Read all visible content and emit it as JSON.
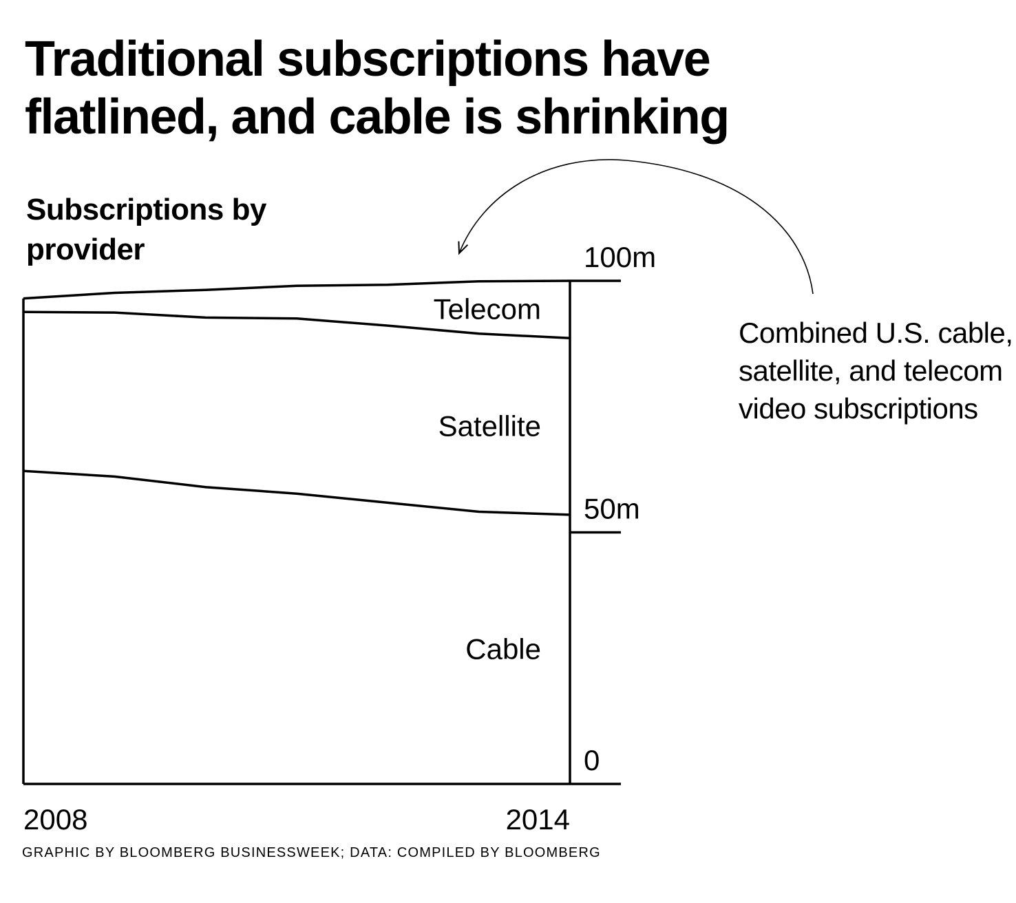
{
  "title": "Traditional subscriptions have flatlined, and cable is shrinking",
  "subtitle": "Subscriptions by provider",
  "annotation": "Combined U.S. cable, satellite, and telecom video subscriptions",
  "source": "GRAPHIC BY BLOOMBERG BUSINESSWEEK; DATA: COMPILED BY BLOOMBERG",
  "chart_data": {
    "type": "area",
    "stacked": true,
    "x_labels": [
      "2008",
      "2014"
    ],
    "x": [
      2008,
      2009,
      2010,
      2011,
      2012,
      2013,
      2014
    ],
    "ylim": [
      0,
      100
    ],
    "y_ticks": [
      {
        "value": 0,
        "label": "0"
      },
      {
        "value": 50,
        "label": "50m"
      },
      {
        "value": 100,
        "label": "100m"
      }
    ],
    "grid": false,
    "legend": "inline labels",
    "series": [
      {
        "name": "Cable",
        "values": [
          62.2,
          61.1,
          59.0,
          57.7,
          55.9,
          54.1,
          53.5
        ]
      },
      {
        "name": "Satellite",
        "values": [
          31.6,
          32.6,
          33.7,
          34.8,
          35.2,
          35.4,
          35.1
        ]
      },
      {
        "name": "Telecom",
        "values": [
          2.7,
          3.9,
          5.5,
          6.5,
          8.1,
          10.4,
          11.4
        ]
      }
    ]
  }
}
